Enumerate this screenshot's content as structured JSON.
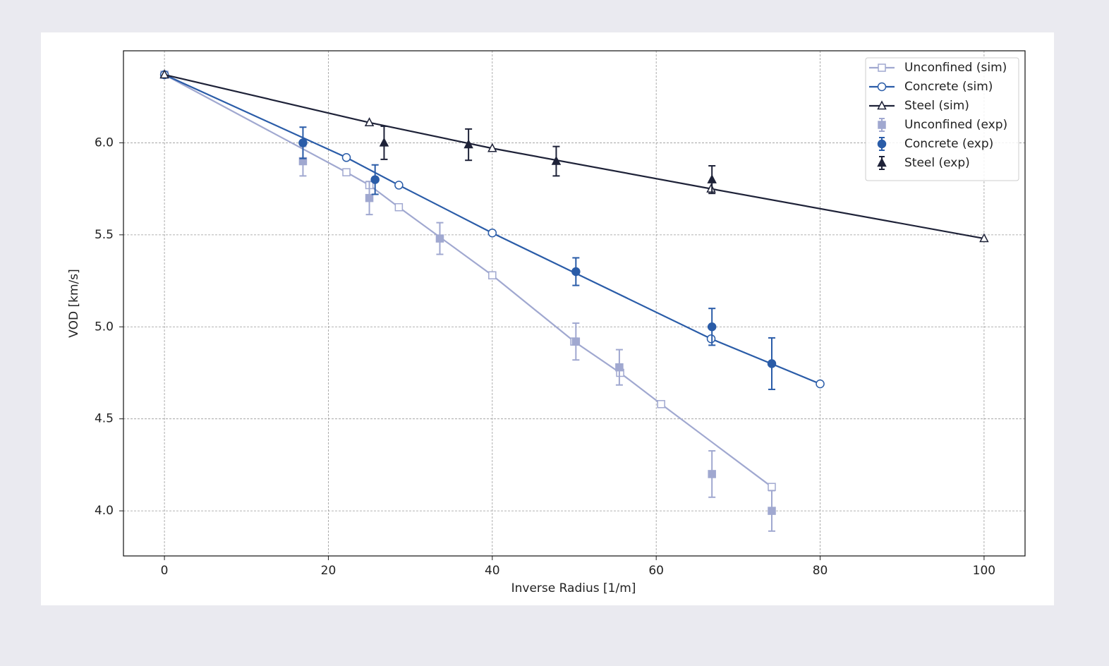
{
  "chart_data": {
    "type": "line",
    "xlabel": "Inverse Radius [1/m]",
    "ylabel": "VOD [km/s]",
    "xlim": [
      -5,
      105
    ],
    "ylim": [
      3.755,
      6.5
    ],
    "xticks": [
      0,
      20,
      40,
      60,
      80,
      100
    ],
    "yticks": [
      {
        "value": 4,
        "label": "4.0"
      },
      {
        "value": 4.5,
        "label": "4.5"
      },
      {
        "value": 5,
        "label": "5.0"
      },
      {
        "value": 5.5,
        "label": "5.5"
      },
      {
        "value": 6,
        "label": "6.0"
      }
    ],
    "grid": true,
    "legend": "upper right",
    "series": [
      {
        "name": "Unconfined (sim)",
        "color": "#a0a8d0",
        "marker": "square-open",
        "linestyle": "solid",
        "x": [
          0,
          22.2,
          25,
          28.6,
          40,
          50,
          55.6,
          60.6,
          74.1
        ],
        "values": [
          6.37,
          5.84,
          5.77,
          5.65,
          5.28,
          4.92,
          4.75,
          4.58,
          4.13
        ]
      },
      {
        "name": "Concrete (sim)",
        "color": "#2a5ca8",
        "marker": "circle-open",
        "linestyle": "solid",
        "x": [
          0,
          22.2,
          28.6,
          40,
          66.7,
          80
        ],
        "values": [
          6.37,
          5.92,
          5.77,
          5.51,
          4.935,
          4.69
        ]
      },
      {
        "name": "Steel (sim)",
        "color": "#1e2238",
        "marker": "triangle-open",
        "linestyle": "solid",
        "x": [
          0,
          25,
          40,
          66.7,
          100
        ],
        "values": [
          6.37,
          6.11,
          5.97,
          5.75,
          5.48
        ]
      },
      {
        "name": "Unconfined (exp)",
        "color": "#a0a8d0",
        "marker": "square",
        "linestyle": "none",
        "x": [
          16.9,
          25,
          33.6,
          50.2,
          55.5,
          66.8,
          74.1
        ],
        "values": [
          5.9,
          5.7,
          5.48,
          4.92,
          4.78,
          4.2,
          4.0
        ],
        "errors": [
          0.08,
          0.09,
          0.086,
          0.1,
          0.096,
          0.126,
          0.11
        ]
      },
      {
        "name": "Concrete (exp)",
        "color": "#2a5ca8",
        "marker": "circle",
        "linestyle": "none",
        "x": [
          16.9,
          25.7,
          50.2,
          66.8,
          74.1
        ],
        "values": [
          6.0,
          5.8,
          5.3,
          5.0,
          4.8
        ],
        "errors": [
          0.085,
          0.08,
          0.075,
          0.1,
          0.14
        ]
      },
      {
        "name": "Steel (exp)",
        "color": "#1e2238",
        "marker": "triangle",
        "linestyle": "none",
        "x": [
          26.8,
          37.1,
          47.8,
          66.8
        ],
        "values": [
          6.0,
          5.99,
          5.9,
          5.8
        ],
        "errors": [
          0.09,
          0.085,
          0.08,
          0.075
        ]
      }
    ]
  }
}
